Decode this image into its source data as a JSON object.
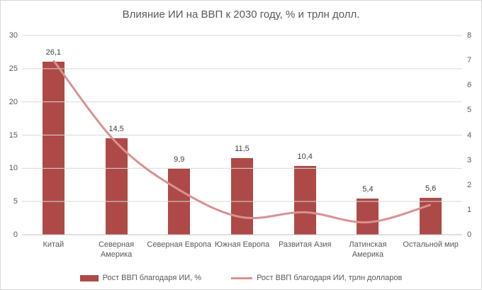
{
  "title": "Влияние ИИ на ВВП к 2030 году, % и трлн долл.",
  "chart_data": {
    "type": "combo",
    "subtype": [
      "bar",
      "line"
    ],
    "title": "Влияние ИИ на ВВП к 2030 году, % и трлн долл.",
    "categories": [
      "Китай",
      "Северная Америка",
      "Северная Европа",
      "Южная Европа",
      "Развитая Азия",
      "Латинская Америка",
      "Остальной мир"
    ],
    "category_label_lines": [
      [
        "Китай"
      ],
      [
        "Северная",
        "Америка"
      ],
      [
        "Северная Европа"
      ],
      [
        "Южная Европа"
      ],
      [
        "Развитая Азия"
      ],
      [
        "Латинская",
        "Америка"
      ],
      [
        "Остальной мир"
      ]
    ],
    "series": [
      {
        "name": "Рост ВВП благодаря ИИ, %",
        "type": "bar",
        "axis": "left",
        "values": [
          26.1,
          14.5,
          9.9,
          11.5,
          10.4,
          5.4,
          5.6
        ],
        "data_labels": [
          "26,1",
          "14,5",
          "9,9",
          "11,5",
          "10,4",
          "5,4",
          "5,6"
        ],
        "color": "#ad4a47"
      },
      {
        "name": "Рост ВВП благодаря ИИ, трлн долларов",
        "type": "line",
        "axis": "right",
        "smooth": true,
        "values": [
          7.0,
          3.7,
          1.8,
          0.7,
          0.9,
          0.5,
          1.2
        ],
        "color": "#d89290"
      }
    ],
    "axes": {
      "left": {
        "min": 0,
        "max": 30,
        "step": 5,
        "ticks": [
          "0",
          "5",
          "10",
          "15",
          "20",
          "25",
          "30"
        ]
      },
      "right": {
        "min": 0,
        "max": 8,
        "step": 1,
        "ticks": [
          "0",
          "1",
          "2",
          "3",
          "4",
          "5",
          "6",
          "7",
          "8"
        ]
      }
    },
    "grid": "horizontal",
    "legend_position": "bottom",
    "colors": {
      "grid_line": "#d9d9d9",
      "axis_line": "#bfbfbf",
      "text": "#595959",
      "data_label_text": "#404040"
    }
  }
}
